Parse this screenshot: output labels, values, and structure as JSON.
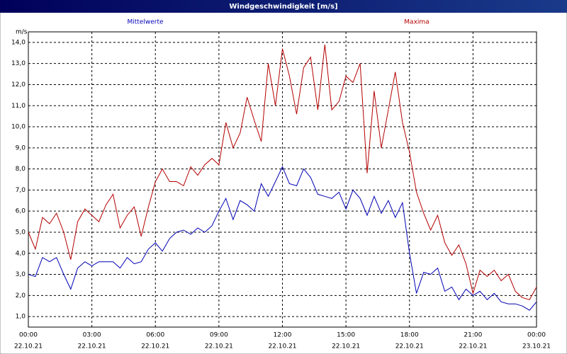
{
  "chart_data": {
    "type": "line",
    "title": "Windgeschwindigkeit [m/s]",
    "y_unit": "m/s",
    "x": [
      0,
      0.33,
      0.67,
      1,
      1.33,
      1.67,
      2,
      2.33,
      2.67,
      3,
      3.33,
      3.67,
      4,
      4.33,
      4.67,
      5,
      5.33,
      5.67,
      6,
      6.33,
      6.67,
      7,
      7.33,
      7.67,
      8,
      8.33,
      8.67,
      9,
      9.33,
      9.67,
      10,
      10.33,
      10.67,
      11,
      11.33,
      11.67,
      12,
      12.33,
      12.67,
      13,
      13.33,
      13.67,
      14,
      14.33,
      14.67,
      15,
      15.33,
      15.67,
      16,
      16.33,
      16.67,
      17,
      17.33,
      17.67,
      18,
      18.33,
      18.67,
      19,
      19.33,
      19.67,
      20,
      20.33,
      20.67,
      21,
      21.33,
      21.67,
      22,
      22.33,
      22.67,
      23,
      23.33,
      23.67,
      24
    ],
    "series": [
      {
        "name": "Mittelwerte",
        "color": "#0000b4",
        "values": [
          3.0,
          2.9,
          3.8,
          3.6,
          3.8,
          3.0,
          2.3,
          3.3,
          3.6,
          3.4,
          3.6,
          3.6,
          3.6,
          3.3,
          3.8,
          3.5,
          3.6,
          4.2,
          4.5,
          4.1,
          4.7,
          5.0,
          5.1,
          4.9,
          5.2,
          5.0,
          5.3,
          6.0,
          6.6,
          5.6,
          6.5,
          6.3,
          6.0,
          7.3,
          6.7,
          7.4,
          8.1,
          7.3,
          7.2,
          8.0,
          7.6,
          6.8,
          6.7,
          6.6,
          6.9,
          6.1,
          7.0,
          6.6,
          5.8,
          6.7,
          5.9,
          6.5,
          5.7,
          6.4,
          4.0,
          2.1,
          3.1,
          3.0,
          3.3,
          2.2,
          2.4,
          1.8,
          2.3,
          2.0,
          2.2,
          1.8,
          2.1,
          1.7,
          1.6,
          1.6,
          1.5,
          1.3,
          1.7
        ]
      },
      {
        "name": "Maxima",
        "color": "#b40000",
        "values": [
          5.0,
          4.2,
          5.7,
          5.4,
          5.9,
          5.0,
          3.7,
          5.5,
          6.1,
          5.8,
          5.5,
          6.3,
          6.8,
          5.2,
          5.8,
          6.2,
          4.8,
          6.2,
          7.4,
          8.0,
          7.4,
          7.4,
          7.2,
          8.1,
          7.7,
          8.2,
          8.5,
          8.2,
          10.2,
          9.0,
          9.7,
          11.4,
          10.3,
          9.3,
          13.0,
          11.0,
          13.7,
          12.4,
          10.6,
          12.8,
          13.3,
          10.8,
          13.9,
          10.8,
          11.2,
          12.4,
          12.1,
          13.0,
          7.8,
          11.7,
          9.0,
          10.8,
          12.6,
          10.2,
          8.8,
          6.9,
          5.9,
          5.1,
          5.8,
          4.5,
          3.9,
          4.4,
          3.5,
          2.1,
          3.2,
          2.9,
          3.2,
          2.7,
          3.0,
          2.2,
          1.9,
          1.8,
          2.4
        ]
      }
    ],
    "xlim": [
      0,
      24
    ],
    "xticks": [
      {
        "value": 0,
        "label": "00:00"
      },
      {
        "value": 3,
        "label": "03:00"
      },
      {
        "value": 6,
        "label": "06:00"
      },
      {
        "value": 9,
        "label": "09:00"
      },
      {
        "value": 12,
        "label": "12:00"
      },
      {
        "value": 15,
        "label": "15:00"
      },
      {
        "value": 18,
        "label": "18:00"
      },
      {
        "value": 21,
        "label": "21:00"
      },
      {
        "value": 24,
        "label": "00:00"
      }
    ],
    "xtick_dates": [
      "22.10.21",
      "22.10.21",
      "22.10.21",
      "22.10.21",
      "22.10.21",
      "22.10.21",
      "22.10.21",
      "22.10.21",
      "23.10.21"
    ],
    "ylim": [
      0.5,
      14.5
    ],
    "yticks": [
      {
        "value": 1,
        "label": "1,0"
      },
      {
        "value": 2,
        "label": "2,0"
      },
      {
        "value": 3,
        "label": "3,0"
      },
      {
        "value": 4,
        "label": "4,0"
      },
      {
        "value": 5,
        "label": "5,0"
      },
      {
        "value": 6,
        "label": "6,0"
      },
      {
        "value": 7,
        "label": "7,0"
      },
      {
        "value": 8,
        "label": "8,0"
      },
      {
        "value": 9,
        "label": "9,0"
      },
      {
        "value": 10,
        "label": "10,0"
      },
      {
        "value": 11,
        "label": "11,0"
      },
      {
        "value": 12,
        "label": "12,0"
      },
      {
        "value": 13,
        "label": "13,0"
      },
      {
        "value": 14,
        "label": "14,0"
      }
    ],
    "grid": true
  }
}
